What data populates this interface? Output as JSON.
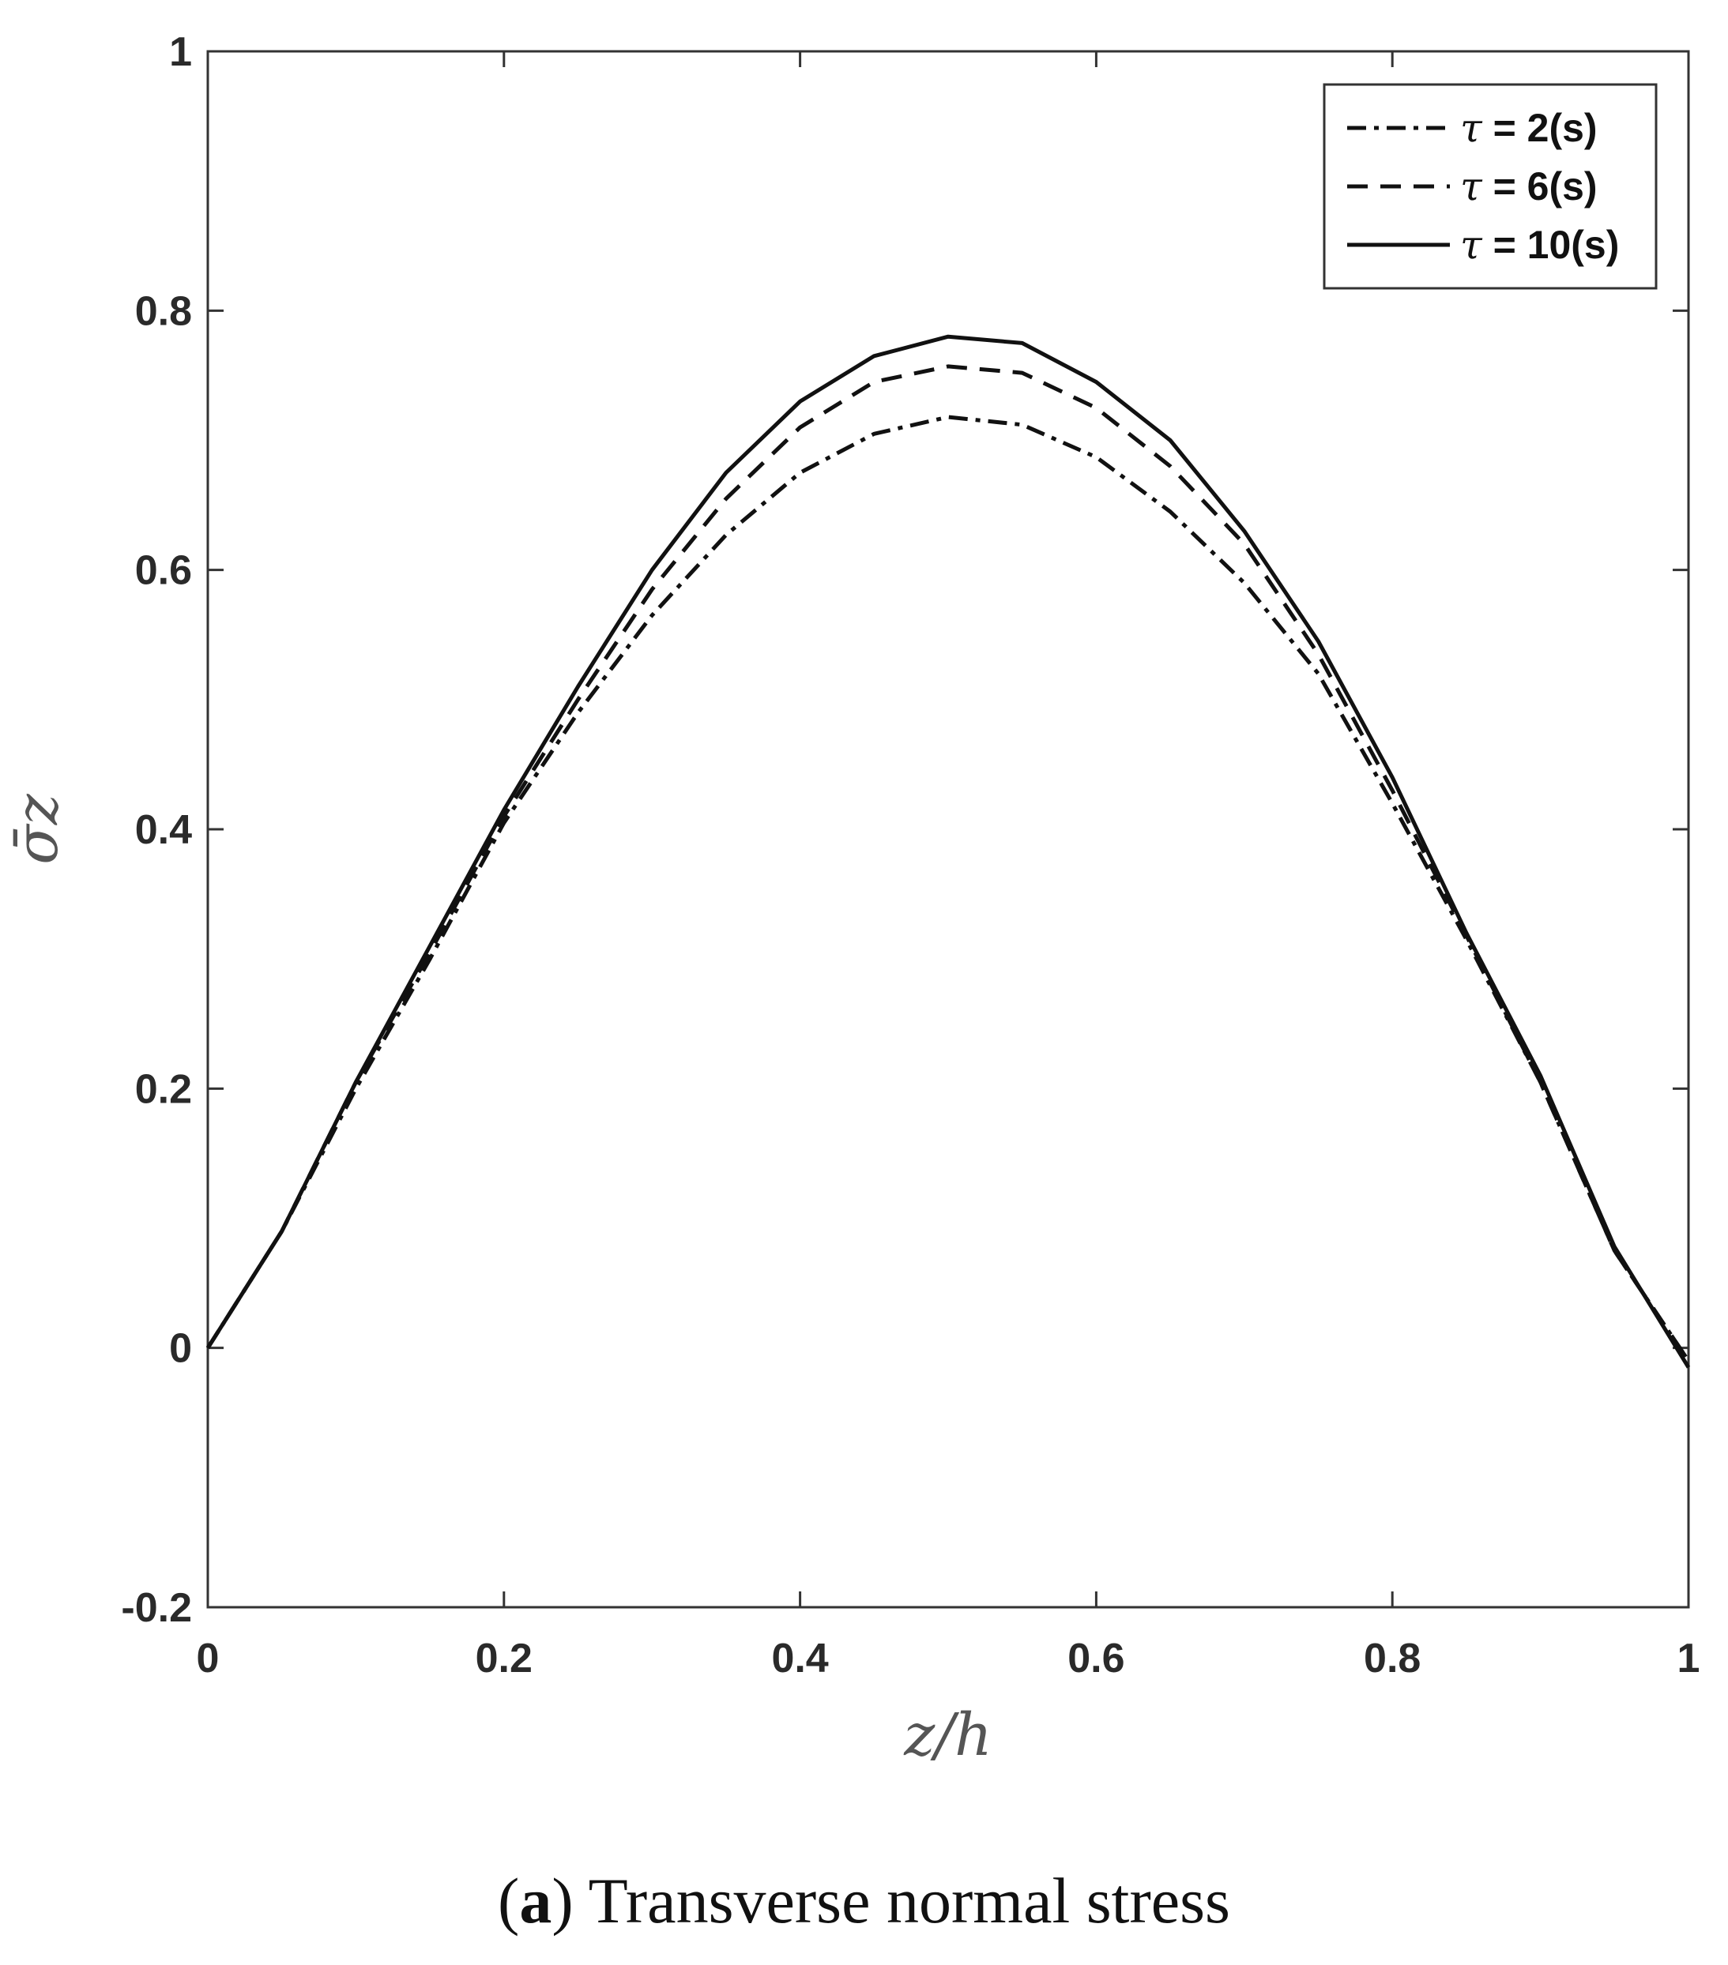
{
  "caption": {
    "label": "a",
    "text": "Transverse normal stress"
  },
  "chart_data": {
    "type": "line",
    "xlabel": "z/h",
    "ylabel": "σ̄z",
    "xlim": [
      0,
      1
    ],
    "ylim": [
      -0.2,
      1
    ],
    "xticks": [
      "0",
      "0.2",
      "0.4",
      "0.6",
      "0.8",
      "1"
    ],
    "yticks": [
      "-0.2",
      "0",
      "0.2",
      "0.4",
      "0.6",
      "0.8",
      "1"
    ],
    "grid": false,
    "legend_position": "top-right",
    "x": [
      0,
      0.05,
      0.1,
      0.15,
      0.2,
      0.25,
      0.3,
      0.35,
      0.4,
      0.45,
      0.5,
      0.55,
      0.6,
      0.65,
      0.7,
      0.75,
      0.8,
      0.85,
      0.9,
      0.95,
      1.0
    ],
    "series": [
      {
        "name": "τ = 2(s)",
        "tau": "τ",
        "rest": " = 2(s)",
        "dash": "dashdot",
        "values": [
          0,
          0.09,
          0.2,
          0.3,
          0.405,
          0.49,
          0.565,
          0.627,
          0.675,
          0.705,
          0.718,
          0.712,
          0.687,
          0.645,
          0.59,
          0.52,
          0.42,
          0.315,
          0.205,
          0.075,
          -0.01
        ]
      },
      {
        "name": "τ = 6(s)",
        "tau": "τ",
        "rest": " = 6(s)",
        "dash": "dashed",
        "values": [
          0,
          0.09,
          0.205,
          0.305,
          0.41,
          0.5,
          0.585,
          0.655,
          0.71,
          0.745,
          0.757,
          0.752,
          0.725,
          0.68,
          0.62,
          0.535,
          0.43,
          0.318,
          0.205,
          0.075,
          -0.01
        ]
      },
      {
        "name": "τ = 10(s)",
        "tau": "τ",
        "rest": " = 10(s)",
        "dash": "solid",
        "values": [
          0,
          0.09,
          0.205,
          0.31,
          0.415,
          0.51,
          0.6,
          0.675,
          0.73,
          0.765,
          0.78,
          0.775,
          0.745,
          0.7,
          0.63,
          0.545,
          0.44,
          0.32,
          0.21,
          0.078,
          -0.015
        ]
      }
    ]
  }
}
